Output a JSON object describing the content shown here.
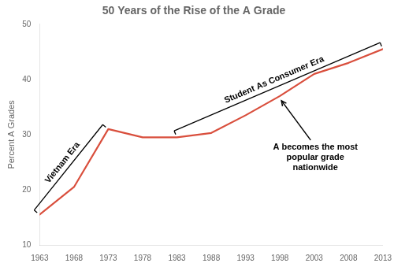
{
  "chart_data": {
    "type": "line",
    "title": "50 Years of the Rise of the A Grade",
    "ylabel": "Percent A Grades",
    "x": [
      1963,
      1968,
      1973,
      1978,
      1983,
      1988,
      1993,
      1998,
      2003,
      2008,
      2013
    ],
    "values": [
      15.5,
      20.5,
      31.0,
      29.5,
      29.5,
      30.3,
      33.5,
      37.0,
      41.0,
      43.0,
      45.5
    ],
    "color": "#d94f3d",
    "xlim": [
      1963,
      2013
    ],
    "xticks": [
      1963,
      1968,
      1973,
      1978,
      1983,
      1988,
      1993,
      1998,
      2003,
      2008,
      2013
    ],
    "ylim": [
      10,
      50
    ],
    "yticks": [
      10,
      20,
      30,
      40,
      50
    ],
    "grid": false,
    "annotations": [
      {
        "text": "Vietnam Era",
        "x": [
          1963,
          1973
        ]
      },
      {
        "text": "Student As Consumer Era",
        "x": [
          1983,
          2013
        ]
      },
      {
        "text": "A becomes the most\npopular grade\nnationwide",
        "x": 1998
      }
    ]
  }
}
